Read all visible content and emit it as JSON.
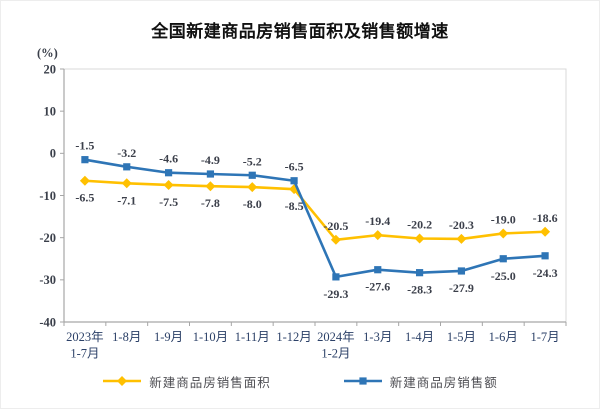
{
  "chart_data": {
    "type": "line",
    "title": "全国新建商品房销售面积及销售额增速",
    "unit_label": "(%)",
    "categories": [
      "2023年\n1-7月",
      "1-8月",
      "1-9月",
      "1-10月",
      "1-11月",
      "1-12月",
      "2024年\n1-2月",
      "1-3月",
      "1-4月",
      "1-5月",
      "1-6月",
      "1-7月"
    ],
    "series": [
      {
        "name": "新建商品房销售面积",
        "color": "#FFC000",
        "marker": "diamond",
        "values": [
          -6.5,
          -7.1,
          -7.5,
          -7.8,
          -8.0,
          -8.5,
          -20.5,
          -19.4,
          -20.2,
          -20.3,
          -19.0,
          -18.6
        ]
      },
      {
        "name": "新建商品房销售额",
        "color": "#2E75B6",
        "marker": "square",
        "values": [
          -1.5,
          -3.2,
          -4.6,
          -4.9,
          -5.2,
          -6.5,
          -29.3,
          -27.6,
          -28.3,
          -27.9,
          -25.0,
          -24.3
        ]
      }
    ],
    "yticks": [
      20,
      10,
      0,
      -10,
      -20,
      -30,
      -40
    ],
    "ylim": [
      -40,
      20
    ],
    "grid": false,
    "legend_position": "bottom",
    "colors": {
      "axis": "#a6a6a6",
      "plot_border": "#d9d9d9",
      "x_label": "#2c4168",
      "data_label": "#3b3f4a"
    }
  }
}
